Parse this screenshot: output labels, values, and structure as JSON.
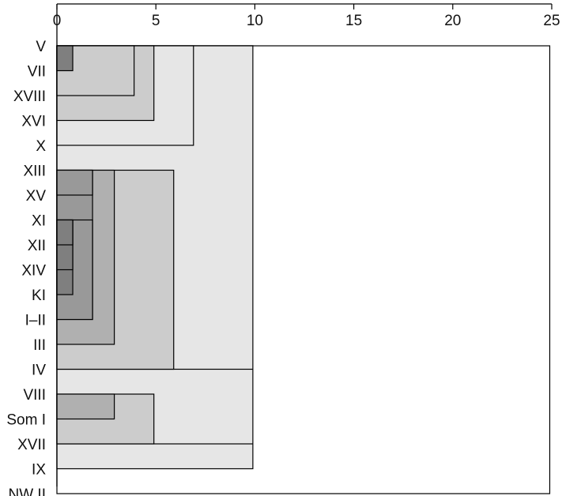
{
  "chart_data": {
    "type": "dendrogram",
    "title": "",
    "xlabel": "",
    "ylabel": "",
    "xlim": [
      0,
      25
    ],
    "x_ticks": [
      0,
      5,
      10,
      15,
      20,
      25
    ],
    "x_tick_labels": [
      "0",
      "5",
      "10",
      "15",
      "20",
      "25"
    ],
    "leaves": [
      "V",
      "VII",
      "XVIII",
      "XVI",
      "X",
      "XIII",
      "XV",
      "XI",
      "XII",
      "XIV",
      "KI",
      "I–II",
      "III",
      "IV",
      "VIII",
      "Som I",
      "XVII",
      "IX",
      "NW II"
    ],
    "merges": [
      {
        "members": [
          "V",
          "VII"
        ],
        "height": 0.8
      },
      {
        "members": [
          "XI",
          "XII"
        ],
        "height": 0.8
      },
      {
        "members": [
          "XI",
          "XII",
          "XIV"
        ],
        "height": 0.8
      },
      {
        "members": [
          "XI",
          "XII",
          "XIV",
          "KI"
        ],
        "height": 0.8
      },
      {
        "members": [
          "XIII",
          "XV"
        ],
        "height": 1.8
      },
      {
        "members": [
          "XI",
          "XII",
          "XIV",
          "KI",
          "I–II"
        ],
        "height": 1.8
      },
      {
        "members": [
          "XIII",
          "XV",
          "XI",
          "XII",
          "XIV",
          "KI",
          "I–II"
        ],
        "height": 1.8
      },
      {
        "members": [
          "XIII",
          "XV",
          "XI",
          "XII",
          "XIV",
          "KI",
          "I–II",
          "III"
        ],
        "height": 2.9
      },
      {
        "members": [
          "VIII",
          "Som I"
        ],
        "height": 2.9
      },
      {
        "members": [
          "V",
          "VII",
          "XVIII"
        ],
        "height": 3.9
      },
      {
        "members": [
          "V",
          "VII",
          "XVIII",
          "XVI"
        ],
        "height": 4.9
      },
      {
        "members": [
          "VIII",
          "Som I",
          "XVII"
        ],
        "height": 4.9
      },
      {
        "members": [
          "XIII",
          "XV",
          "XI",
          "XII",
          "XIV",
          "KI",
          "I–II",
          "III",
          "IV"
        ],
        "height": 5.9
      },
      {
        "members": [
          "V",
          "VII",
          "XVIII",
          "XVI",
          "X"
        ],
        "height": 6.9
      },
      {
        "members": [
          "V",
          "VII",
          "XVIII",
          "XVI",
          "X",
          "XIII",
          "XV",
          "XI",
          "XII",
          "XIV",
          "KI",
          "I–II",
          "III",
          "IV"
        ],
        "height": 9.9
      },
      {
        "members": [
          "V",
          "VII",
          "XVIII",
          "XVI",
          "X",
          "XIII",
          "XV",
          "XI",
          "XII",
          "XIV",
          "KI",
          "I–II",
          "III",
          "IV",
          "VIII",
          "Som I",
          "XVII"
        ],
        "height": 9.9
      },
      {
        "members": [
          "V",
          "VII",
          "XVIII",
          "XVI",
          "X",
          "XIII",
          "XV",
          "XI",
          "XII",
          "XIV",
          "KI",
          "I–II",
          "III",
          "IV",
          "VIII",
          "Som I",
          "XVII",
          "IX"
        ],
        "height": 9.9
      },
      {
        "members": [
          "V",
          "VII",
          "XVIII",
          "XVI",
          "X",
          "XIII",
          "XV",
          "XI",
          "XII",
          "XIV",
          "KI",
          "I–II",
          "III",
          "IV",
          "VIII",
          "Som I",
          "XVII",
          "IX",
          "NW II"
        ],
        "height": 24.9
      }
    ],
    "shading": {
      "0.8": "#7f7f7f",
      "1.8": "#999999",
      "2.9": "#b0b0b0",
      "3.9": "#cccccc",
      "4.9": "#cccccc",
      "5.9": "#cccccc",
      "6.9": "#e6e6e6",
      "9.9": "#e6e6e6",
      "24.9": "#ffffff"
    },
    "grid": false,
    "legend": "none"
  }
}
